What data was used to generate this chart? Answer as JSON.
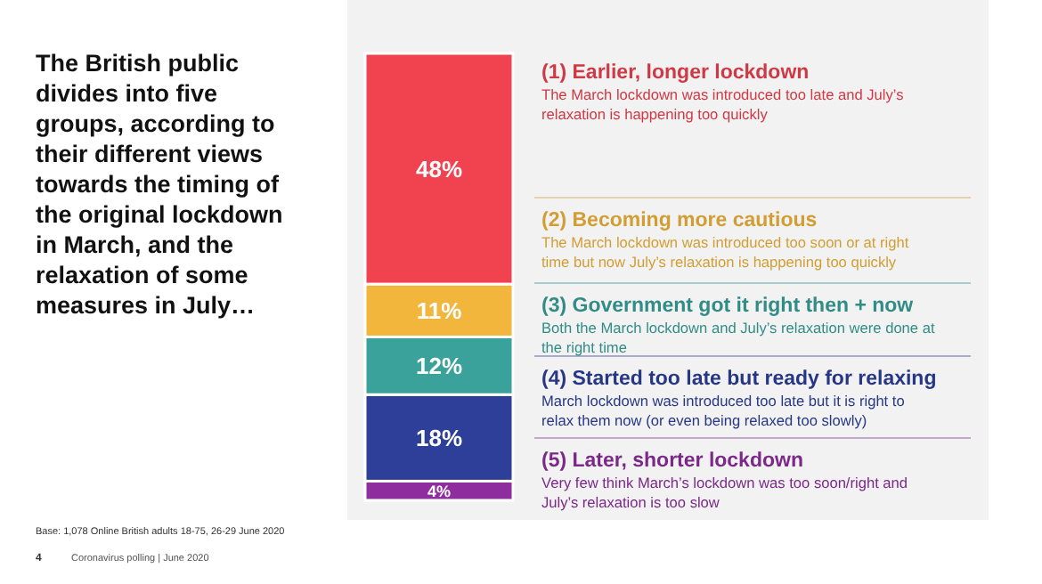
{
  "chart_data": {
    "type": "bar",
    "stacked": true,
    "title": "The British public divides into five groups, according to their different views towards the timing of the original lockdown in March, and the relaxation of some measures in July…",
    "categories": [
      null
    ],
    "series": [
      {
        "name": "(5) Later, shorter lockdown",
        "color": "#8e2e9e",
        "values": [
          4
        ],
        "value_labels": [
          "4%"
        ]
      },
      {
        "name": "(4) Started too late but ready for relaxing",
        "color": "#2d3f99",
        "values": [
          18
        ],
        "value_labels": [
          "18%"
        ]
      },
      {
        "name": "(3) Government got it right then + now",
        "color": "#3aa29a",
        "values": [
          12
        ],
        "value_labels": [
          "12%"
        ]
      },
      {
        "name": "(2) Becoming more cautious",
        "color": "#f2b63c",
        "values": [
          11
        ],
        "value_labels": [
          "11%"
        ]
      },
      {
        "name": "(1) Earlier, longer lockdown",
        "color": "#f0424f",
        "values": [
          48
        ],
        "value_labels": [
          "48%"
        ]
      }
    ],
    "annotations": [
      "Very few think March’s lockdown was too soon/right and July’s relaxation is too slow",
      "March lockdown was introduced too late but it is right to relax them now (or even being relaxed too slowly)",
      "Both the March lockdown and July’s relaxation were done at the right time",
      "The March lockdown was introduced too soon or at right time but now July’s relaxation is happening too quickly",
      "The March lockdown was introduced too late and July’s relaxation is happening too quickly",
      "Base: 1,078 Online British adults 18-75, 26-29 June 2020",
      "4",
      "Coronavirus polling | June 2020"
    ]
  }
}
